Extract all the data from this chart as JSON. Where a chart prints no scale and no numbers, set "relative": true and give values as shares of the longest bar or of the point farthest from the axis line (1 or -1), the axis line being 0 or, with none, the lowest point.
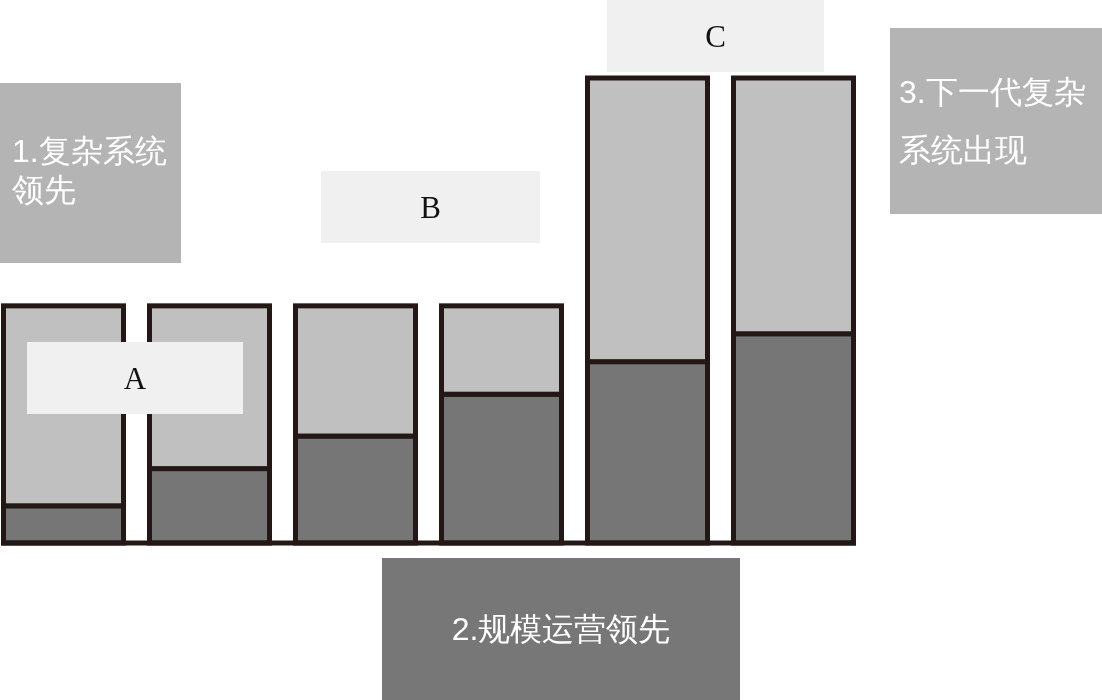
{
  "chart_data": {
    "type": "bar",
    "categories": [
      null,
      null,
      null,
      null,
      null,
      null
    ],
    "stacked": true,
    "relative": true,
    "series": [
      {
        "color": "#767676",
        "values": [
          0.08,
          0.16,
          0.23,
          0.32,
          0.39,
          0.45
        ]
      },
      {
        "color": "#c0c0c0",
        "values": [
          0.43,
          0.35,
          0.28,
          0.19,
          0.61,
          0.55
        ]
      }
    ],
    "annotations": [
      "1.复杂系统领先",
      "A",
      "B",
      "2.规模运营领先",
      "C",
      "3.下一代复杂系统出现"
    ]
  }
}
